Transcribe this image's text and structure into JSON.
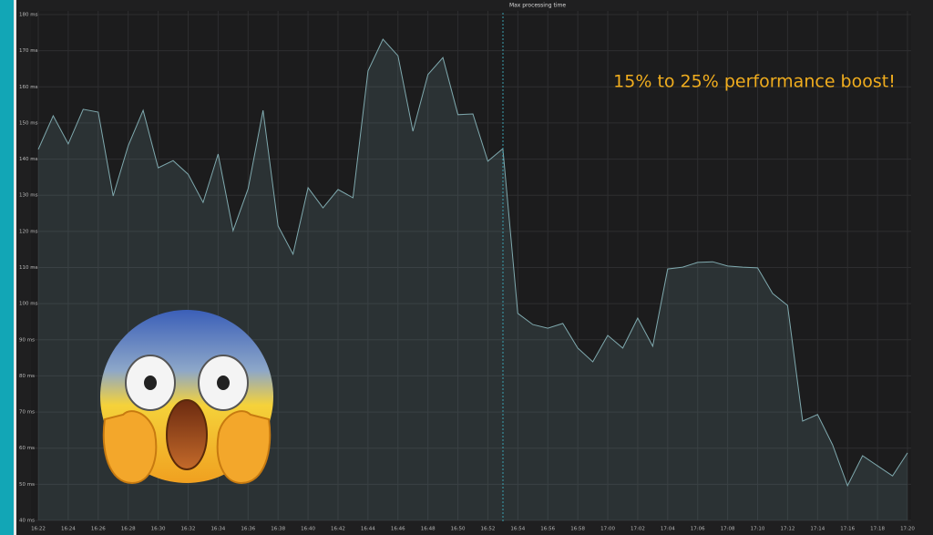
{
  "chart_data": {
    "type": "line",
    "title": "Max processing time",
    "annotation": "15% to 25% performance boost!",
    "categories": [
      "16:22",
      null,
      "16:24",
      null,
      "16:26",
      null,
      "16:28",
      null,
      "16:30",
      null,
      "16:32",
      null,
      "16:34",
      null,
      "16:36",
      null,
      "16:38",
      null,
      "16:40",
      null,
      "16:42",
      null,
      "16:44",
      null,
      "16:46",
      null,
      "16:48",
      null,
      "16:50",
      null,
      "16:52",
      null,
      "16:54",
      null,
      "16:56",
      null,
      "16:58",
      null,
      "17:00",
      null,
      "17:02",
      null,
      "17:04",
      null,
      "17:06",
      null,
      "17:08",
      null,
      "17:10",
      null,
      "17:12",
      null,
      "17:14",
      null,
      "17:16",
      null,
      "17:18",
      null,
      "17:20"
    ],
    "values": [
      142.7,
      152,
      144.2,
      153.8,
      153,
      129.8,
      143.7,
      153.5,
      137.6,
      139.6,
      135.8,
      128,
      141.4,
      120.2,
      131.8,
      153.5,
      121.5,
      113.7,
      132.1,
      126.5,
      131.6,
      129.3,
      164.4,
      173.2,
      168.6,
      147.7,
      163.4,
      168.1,
      152.3,
      152.5,
      139.4,
      142.9,
      97.3,
      94.2,
      93.2,
      94.5,
      87.7,
      83.9,
      91.2,
      87.7,
      96,
      88.2,
      109.6,
      110.1,
      111.4,
      111.6,
      110.4,
      110.1,
      109.9,
      102.8,
      99.5,
      67.5,
      69.3,
      60.9,
      49.6,
      57.9,
      55.1,
      52.3,
      58.7
    ],
    "color": "#7fa9ae",
    "ylim": [
      40,
      180
    ],
    "yticks": [
      {
        "value": 40,
        "label": "40 ms"
      },
      {
        "value": 50,
        "label": "50 ms"
      },
      {
        "value": 60,
        "label": "60 ms"
      },
      {
        "value": 70,
        "label": "70 ms"
      },
      {
        "value": 80,
        "label": "80 ms"
      },
      {
        "value": 90,
        "label": "90 ms"
      },
      {
        "value": 100,
        "label": "100 ms"
      },
      {
        "value": 110,
        "label": "110 ms"
      },
      {
        "value": 120,
        "label": "120 ms"
      },
      {
        "value": 130,
        "label": "130 ms"
      },
      {
        "value": 140,
        "label": "140 ms"
      },
      {
        "value": 150,
        "label": "150 ms"
      },
      {
        "value": 160,
        "label": "160 ms"
      },
      {
        "value": 170,
        "label": "170 ms"
      },
      {
        "value": 180,
        "label": "180 ms"
      }
    ],
    "grid": true
  }
}
